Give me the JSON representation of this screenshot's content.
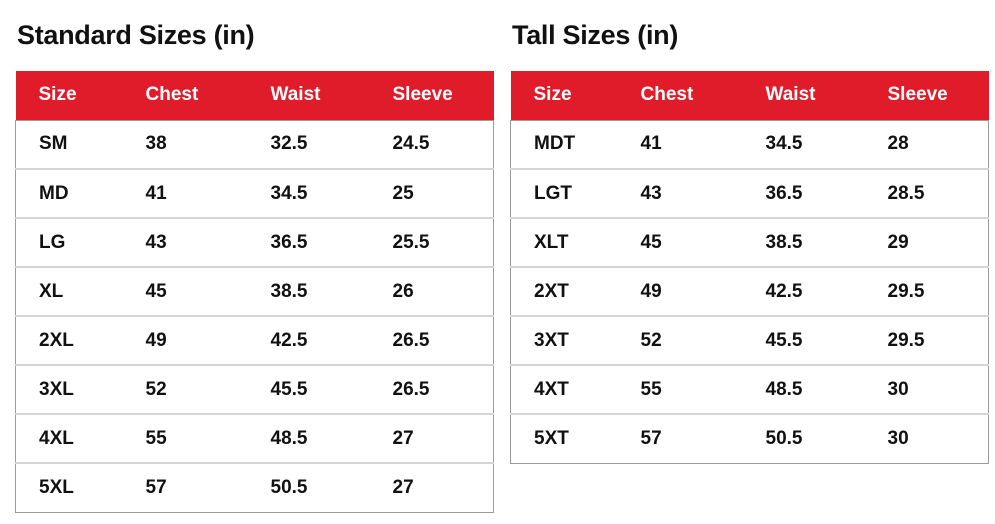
{
  "colors": {
    "header_bg": "#e01c2b",
    "header_text": "#ffffff",
    "body_text": "#111111",
    "row_divider": "#d5d5d5",
    "outer_border": "#9b9b9b",
    "page_bg": "#ffffff"
  },
  "tables": [
    {
      "title": "Standard Sizes (in)",
      "columns": [
        "Size",
        "Chest",
        "Waist",
        "Sleeve"
      ],
      "rows": [
        [
          "SM",
          "38",
          "32.5",
          "24.5"
        ],
        [
          "MD",
          "41",
          "34.5",
          "25"
        ],
        [
          "LG",
          "43",
          "36.5",
          "25.5"
        ],
        [
          "XL",
          "45",
          "38.5",
          "26"
        ],
        [
          "2XL",
          "49",
          "42.5",
          "26.5"
        ],
        [
          "3XL",
          "52",
          "45.5",
          "26.5"
        ],
        [
          "4XL",
          "55",
          "48.5",
          "27"
        ],
        [
          "5XL",
          "57",
          "50.5",
          "27"
        ]
      ]
    },
    {
      "title": "Tall Sizes (in)",
      "columns": [
        "Size",
        "Chest",
        "Waist",
        "Sleeve"
      ],
      "rows": [
        [
          "MDT",
          "41",
          "34.5",
          "28"
        ],
        [
          "LGT",
          "43",
          "36.5",
          "28.5"
        ],
        [
          "XLT",
          "45",
          "38.5",
          "29"
        ],
        [
          "2XT",
          "49",
          "42.5",
          "29.5"
        ],
        [
          "3XT",
          "52",
          "45.5",
          "29.5"
        ],
        [
          "4XT",
          "55",
          "48.5",
          "30"
        ],
        [
          "5XT",
          "57",
          "50.5",
          "30"
        ]
      ]
    }
  ]
}
